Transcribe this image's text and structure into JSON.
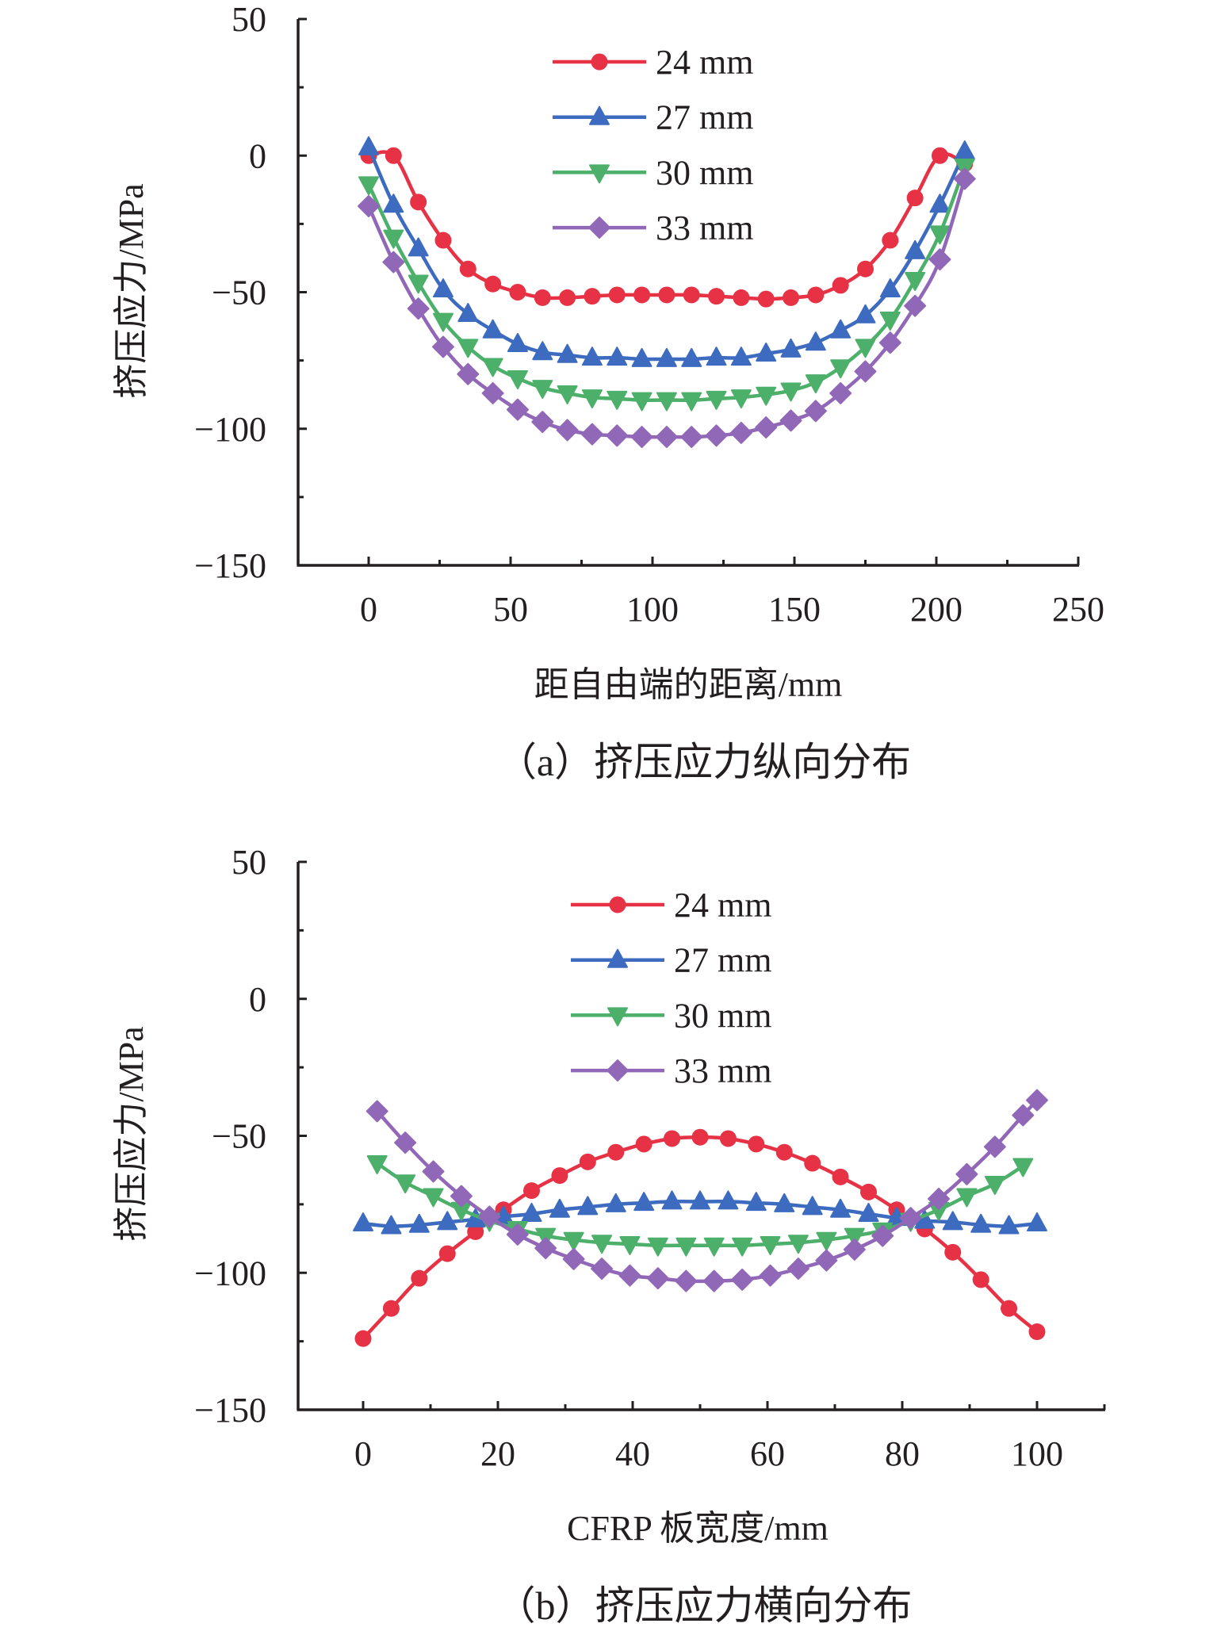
{
  "chart_data": [
    {
      "id": "a",
      "type": "line",
      "caption": "（a）挤压应力纵向分布",
      "xlabel": "距自由端的距离/mm",
      "ylabel": "挤压应力/MPa",
      "xlim": [
        -25,
        250
      ],
      "ylim": [
        -150,
        50
      ],
      "xticks": [
        0,
        50,
        100,
        150,
        200,
        250
      ],
      "xtick_labels": [
        "0",
        "50",
        "100",
        "150",
        "200",
        "250"
      ],
      "xminor": [
        25,
        75,
        125,
        175,
        225
      ],
      "yticks": [
        50,
        0,
        -50,
        -100,
        -150
      ],
      "ytick_labels": [
        "50",
        "0",
        "−50",
        "−100",
        "−150"
      ],
      "yminor": [
        25,
        -25,
        -75,
        -125
      ],
      "legend": "top-center",
      "grid": false,
      "x": [
        0,
        8.75,
        17.5,
        26.25,
        35,
        43.75,
        52.5,
        61.25,
        70,
        78.75,
        87.5,
        96.25,
        105,
        113.75,
        122.5,
        131.25,
        140,
        148.75,
        157.5,
        166.25,
        175,
        183.75,
        192.5,
        201.25,
        210
      ],
      "series": [
        {
          "name": "24 mm",
          "color": "#e63244",
          "marker": "circle",
          "values": [
            0,
            0,
            -17,
            -31,
            -41.5,
            -47,
            -50,
            -52,
            -52,
            -51.5,
            -51,
            -51,
            -51,
            -51,
            -51.5,
            -52,
            -52.5,
            -52,
            -51,
            -47.5,
            -41.5,
            -31,
            -15.5,
            0,
            -3
          ]
        },
        {
          "name": "27 mm",
          "color": "#3d6bbf",
          "marker": "triangle-up",
          "values": [
            3,
            -18,
            -34,
            -49,
            -58,
            -64,
            -69,
            -72,
            -73,
            -74,
            -74,
            -74.5,
            -74.5,
            -74.5,
            -74,
            -74,
            -72.5,
            -71,
            -68.5,
            -64,
            -58.5,
            -49,
            -35,
            -18,
            1.5
          ]
        },
        {
          "name": "30 mm",
          "color": "#4caf6a",
          "marker": "triangle-down",
          "values": [
            -10.5,
            -30,
            -46.5,
            -60.5,
            -70,
            -77,
            -81.5,
            -85,
            -87,
            -88.5,
            -89,
            -89.5,
            -89.5,
            -89.5,
            -89,
            -88.5,
            -87.5,
            -86,
            -83,
            -77.5,
            -70,
            -60,
            -45.5,
            -28.5,
            -4
          ]
        },
        {
          "name": "33 mm",
          "color": "#9168b8",
          "marker": "diamond",
          "values": [
            -18.5,
            -39,
            -56,
            -70,
            -80,
            -87,
            -93,
            -97.5,
            -100.5,
            -102,
            -102.5,
            -103,
            -103,
            -103,
            -102.5,
            -101.5,
            -99.5,
            -97,
            -93.5,
            -87,
            -79,
            -68.5,
            -55,
            -38,
            -8.5
          ]
        }
      ]
    },
    {
      "id": "b",
      "type": "line",
      "caption": "（b）挤压应力横向分布",
      "xlabel": "CFRP 板宽度/mm",
      "ylabel": "挤压应力/MPa",
      "xlim": [
        -10,
        110
      ],
      "ylim": [
        -150,
        50
      ],
      "xticks": [
        0,
        20,
        40,
        60,
        80,
        100
      ],
      "xtick_labels": [
        "0",
        "20",
        "40",
        "60",
        "80",
        "100"
      ],
      "xminor": [
        10,
        30,
        50,
        70,
        90,
        110
      ],
      "yticks": [
        50,
        0,
        -50,
        -100,
        -150
      ],
      "ytick_labels": [
        "50",
        "0",
        "−50",
        "−100",
        "−150"
      ],
      "yminor": [
        25,
        -25,
        -75,
        -125
      ],
      "legend": "top-center",
      "grid": false,
      "series": [
        {
          "name": "24 mm",
          "color": "#e63244",
          "marker": "circle",
          "x": [
            0,
            4.17,
            8.33,
            12.5,
            16.67,
            20.83,
            25,
            29.17,
            33.33,
            37.5,
            41.67,
            45.83,
            50,
            54.17,
            58.33,
            62.5,
            66.67,
            70.83,
            75,
            79.17,
            83.33,
            87.5,
            91.67,
            95.83,
            100
          ],
          "values": [
            -124,
            -113,
            -102,
            -93,
            -85,
            -77,
            -70,
            -64.5,
            -59.5,
            -56,
            -53,
            -51,
            -50.5,
            -51,
            -53,
            -56,
            -60,
            -65,
            -70.5,
            -77,
            -84,
            -92.5,
            -102.5,
            -113,
            -121.5
          ]
        },
        {
          "name": "27 mm",
          "color": "#3d6bbf",
          "marker": "triangle-up",
          "x": [
            0,
            4.17,
            8.33,
            12.5,
            16.67,
            20.83,
            25,
            29.17,
            33.33,
            37.5,
            41.67,
            45.83,
            50,
            54.17,
            58.33,
            62.5,
            66.67,
            70.83,
            75,
            79.17,
            83.33,
            87.5,
            91.67,
            95.83,
            100
          ],
          "values": [
            -82,
            -83,
            -82.5,
            -81.5,
            -80.5,
            -79.5,
            -78.5,
            -77,
            -76,
            -75,
            -74.5,
            -74,
            -74,
            -74,
            -74.5,
            -75,
            -76,
            -77,
            -78.5,
            -80,
            -81,
            -81.5,
            -82.5,
            -83,
            -82
          ]
        },
        {
          "name": "30 mm",
          "color": "#4caf6a",
          "marker": "triangle-down",
          "x": [
            2.08,
            6.25,
            10.42,
            14.58,
            18.75,
            22.92,
            27.08,
            31.25,
            35.42,
            39.58,
            43.75,
            47.92,
            52.08,
            56.25,
            60.42,
            64.58,
            68.75,
            72.92,
            77.08,
            81.25,
            85.42,
            89.58,
            93.75,
            97.92
          ],
          "values": [
            -60,
            -67,
            -72,
            -77,
            -81,
            -84,
            -86.5,
            -88,
            -89,
            -89.5,
            -90,
            -90,
            -90,
            -90,
            -89.5,
            -89,
            -88,
            -86.5,
            -84.5,
            -81,
            -77,
            -72,
            -67.5,
            -61
          ]
        },
        {
          "name": "33 mm",
          "color": "#9168b8",
          "marker": "diamond",
          "x": [
            2.08,
            6.25,
            10.42,
            14.58,
            18.75,
            22.92,
            27.08,
            31.25,
            35.42,
            39.58,
            43.75,
            47.92,
            52.08,
            56.25,
            60.42,
            64.58,
            68.75,
            72.92,
            77.08,
            81.25,
            85.42,
            89.58,
            93.75,
            97.92,
            100
          ],
          "values": [
            -41,
            -52.5,
            -63,
            -72,
            -79.5,
            -86,
            -91,
            -95,
            -98.5,
            -101,
            -102,
            -103,
            -103,
            -102.5,
            -101,
            -98.5,
            -95.5,
            -91.5,
            -86.5,
            -80,
            -73,
            -64,
            -54,
            -42.5,
            -37
          ]
        }
      ]
    }
  ]
}
